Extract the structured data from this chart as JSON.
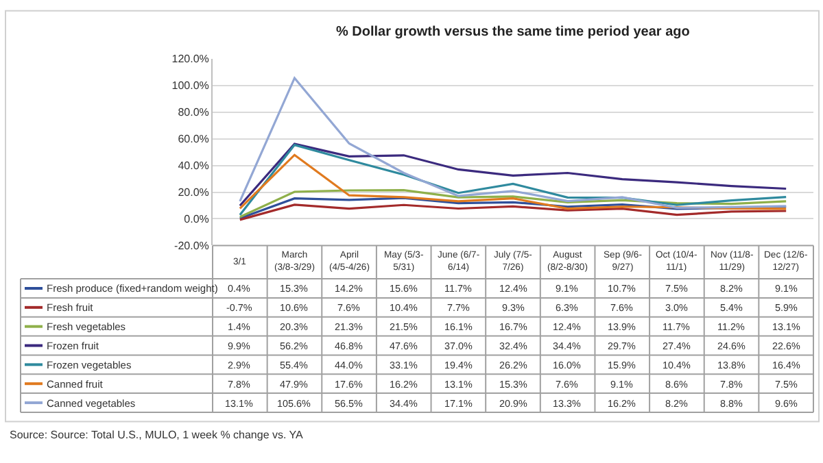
{
  "chart_data": {
    "type": "line",
    "title": "% Dollar growth versus the same time period year ago",
    "categories": [
      "3/1",
      "March (3/8-3/29)",
      "April (4/5-4/26)",
      "May (5/3-5/31)",
      "June (6/7-6/14)",
      "July (7/5-7/26)",
      "August (8/2-8/30)",
      "Sep (9/6-9/27)",
      "Oct (10/4-11/1)",
      "Nov (11/8-11/29)",
      "Dec (12/6-12/27)"
    ],
    "series": [
      {
        "name": "Fresh produce (fixed+random weight)",
        "color": "#2e4f9a",
        "values": [
          0.4,
          15.3,
          14.2,
          15.6,
          11.7,
          12.4,
          9.1,
          10.7,
          7.5,
          8.2,
          9.1
        ],
        "value_labels": [
          "0.4%",
          "15.3%",
          "14.2%",
          "15.6%",
          "11.7%",
          "12.4%",
          "9.1%",
          "10.7%",
          "7.5%",
          "8.2%",
          "9.1%"
        ]
      },
      {
        "name": "Fresh fruit",
        "color": "#a32a2a",
        "values": [
          -0.7,
          10.6,
          7.6,
          10.4,
          7.7,
          9.3,
          6.3,
          7.6,
          3.0,
          5.4,
          5.9
        ],
        "value_labels": [
          "-0.7%",
          "10.6%",
          "7.6%",
          "10.4%",
          "7.7%",
          "9.3%",
          "6.3%",
          "7.6%",
          "3.0%",
          "5.4%",
          "5.9%"
        ]
      },
      {
        "name": "Fresh vegetables",
        "color": "#8fb04a",
        "values": [
          1.4,
          20.3,
          21.3,
          21.5,
          16.1,
          16.7,
          12.4,
          13.9,
          11.7,
          11.2,
          13.1
        ],
        "value_labels": [
          "1.4%",
          "20.3%",
          "21.3%",
          "21.5%",
          "16.1%",
          "16.7%",
          "12.4%",
          "13.9%",
          "11.7%",
          "11.2%",
          "13.1%"
        ]
      },
      {
        "name": "Frozen fruit",
        "color": "#3b2a7e",
        "values": [
          9.9,
          56.2,
          46.8,
          47.6,
          37.0,
          32.4,
          34.4,
          29.7,
          27.4,
          24.6,
          22.6
        ],
        "value_labels": [
          "9.9%",
          "56.2%",
          "46.8%",
          "47.6%",
          "37.0%",
          "32.4%",
          "34.4%",
          "29.7%",
          "27.4%",
          "24.6%",
          "22.6%"
        ]
      },
      {
        "name": "Frozen vegetables",
        "color": "#2f8a9e",
        "values": [
          2.9,
          55.4,
          44.0,
          33.1,
          19.4,
          26.2,
          16.0,
          15.9,
          10.4,
          13.8,
          16.4
        ],
        "value_labels": [
          "2.9%",
          "55.4%",
          "44.0%",
          "33.1%",
          "19.4%",
          "26.2%",
          "16.0%",
          "15.9%",
          "10.4%",
          "13.8%",
          "16.4%"
        ]
      },
      {
        "name": "Canned fruit",
        "color": "#e07a1f",
        "values": [
          7.8,
          47.9,
          17.6,
          16.2,
          13.1,
          15.3,
          7.6,
          9.1,
          8.6,
          7.8,
          7.5
        ],
        "value_labels": [
          "7.8%",
          "47.9%",
          "17.6%",
          "16.2%",
          "13.1%",
          "15.3%",
          "7.6%",
          "9.1%",
          "8.6%",
          "7.8%",
          "7.5%"
        ]
      },
      {
        "name": "Canned vegetables",
        "color": "#93a7d4",
        "values": [
          13.1,
          105.6,
          56.5,
          34.4,
          17.1,
          20.9,
          13.3,
          16.2,
          8.2,
          8.8,
          9.6
        ],
        "value_labels": [
          "13.1%",
          "105.6%",
          "56.5%",
          "34.4%",
          "17.1%",
          "20.9%",
          "13.3%",
          "16.2%",
          "8.2%",
          "8.8%",
          "9.6%"
        ]
      }
    ],
    "ylim": [
      -20,
      120
    ],
    "yticks": [
      {
        "value": -20,
        "label": "-20.0%"
      },
      {
        "value": 0,
        "label": "0.0%"
      },
      {
        "value": 20,
        "label": "20.0%"
      },
      {
        "value": 40,
        "label": "40.0%"
      },
      {
        "value": 60,
        "label": "60.0%"
      },
      {
        "value": 80,
        "label": "80.0%"
      },
      {
        "value": 100,
        "label": "100.0%"
      },
      {
        "value": 120,
        "label": "120.0%"
      }
    ],
    "grid": "y",
    "legend": "bottom",
    "marker": "none",
    "line_style": "solid",
    "annotations": [
      "Source: Source: Total U.S., MULO, 1 week % change vs. YA"
    ]
  }
}
